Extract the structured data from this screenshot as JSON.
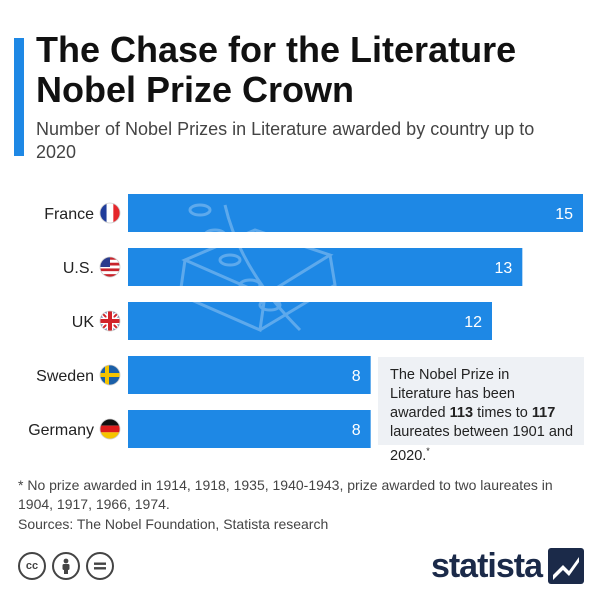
{
  "header": {
    "title": "The Chase for the Literature Nobel Prize Crown",
    "subtitle": "Number of Nobel Prizes in Literature awarded by country up to 2020"
  },
  "chart_data": {
    "type": "bar",
    "orientation": "horizontal",
    "categories": [
      "France",
      "U.S.",
      "UK",
      "Sweden",
      "Germany"
    ],
    "values": [
      15,
      13,
      12,
      8,
      8
    ],
    "flags": [
      "france-flag",
      "usa-flag",
      "uk-flag",
      "sweden-flag",
      "germany-flag"
    ],
    "bar_color": "#1e88e5",
    "value_label_color": "#ffffff",
    "xlim": [
      0,
      15
    ],
    "grid": false
  },
  "callout": {
    "prefix": "The Nobel Prize in Literature has been awarded",
    "awards": "113",
    "mid": "times to",
    "laureates": "117",
    "suffix": "laureates between 1901 and 2020.",
    "mark": "*"
  },
  "footnote": "* No prize awarded in 1914, 1918, 1935, 1940-1943, prize awarded to two laureates in 1904, 1917, 1966, 1974.",
  "source": "Sources: The Nobel Foundation, Statista research",
  "license_icons": [
    "cc-icon",
    "by-icon",
    "nd-icon"
  ],
  "brand": {
    "name": "statista",
    "color": "#1b2a49"
  },
  "colors": {
    "accent": "#1e88e5",
    "callout_bg": "#eef1f5"
  }
}
